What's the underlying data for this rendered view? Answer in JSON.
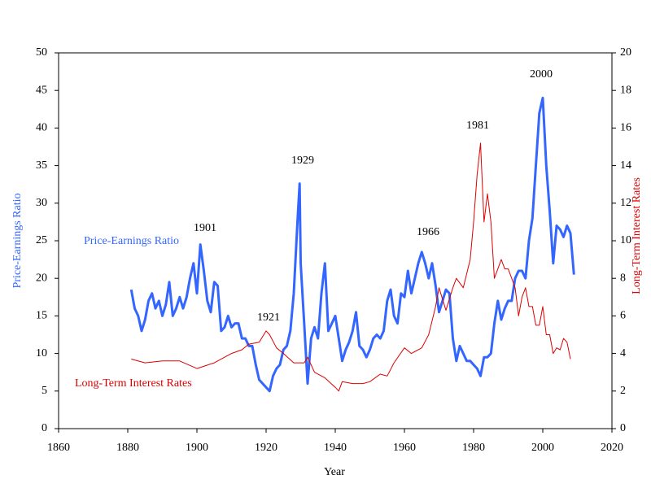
{
  "chart_data": {
    "type": "line",
    "x_label": "Year",
    "y_label": "Price-Earnings Ratio",
    "y2_label": "Long-Term Interest Rates",
    "xlim": [
      1860,
      2020
    ],
    "xticks": [
      1860,
      1880,
      1900,
      1920,
      1940,
      1960,
      1980,
      2000,
      2020
    ],
    "ylim": [
      0,
      50
    ],
    "yticks": [
      0,
      5,
      10,
      15,
      20,
      25,
      30,
      35,
      40,
      45,
      50
    ],
    "y2lim": [
      0,
      20
    ],
    "y2ticks": [
      0,
      2,
      4,
      6,
      8,
      10,
      12,
      14,
      16,
      18,
      20
    ],
    "annotations": [
      "1901",
      "1921",
      "1929",
      "1966",
      "1981",
      "2000"
    ],
    "series": [
      {
        "name": "Price-Earnings Ratio",
        "color": "#3366ff",
        "axis": "y",
        "x": [
          1881,
          1882,
          1883,
          1884,
          1885,
          1886,
          1887,
          1888,
          1889,
          1890,
          1891,
          1892,
          1893,
          1894,
          1895,
          1896,
          1897,
          1898,
          1899,
          1900,
          1901,
          1902,
          1903,
          1904,
          1905,
          1906,
          1907,
          1908,
          1909,
          1910,
          1911,
          1912,
          1913,
          1914,
          1915,
          1916,
          1917,
          1918,
          1919,
          1920,
          1921,
          1922,
          1923,
          1924,
          1925,
          1926,
          1927,
          1928,
          1929,
          1929.7,
          1930,
          1931,
          1932,
          1933,
          1934,
          1935,
          1936,
          1937,
          1938,
          1939,
          1940,
          1941,
          1942,
          1943,
          1944,
          1945,
          1946,
          1947,
          1948,
          1949,
          1950,
          1951,
          1952,
          1953,
          1954,
          1955,
          1956,
          1957,
          1958,
          1959,
          1960,
          1961,
          1962,
          1963,
          1964,
          1965,
          1966,
          1967,
          1968,
          1969,
          1970,
          1971,
          1972,
          1973,
          1974,
          1975,
          1976,
          1977,
          1978,
          1979,
          1980,
          1981,
          1982,
          1983,
          1984,
          1985,
          1986,
          1987,
          1988,
          1989,
          1990,
          1991,
          1992,
          1993,
          1994,
          1995,
          1996,
          1997,
          1998,
          1999,
          2000,
          2001,
          2002,
          2003,
          2004,
          2005,
          2006,
          2007,
          2008,
          2009
        ],
        "values": [
          18.5,
          16,
          15,
          13,
          14.5,
          17,
          18,
          16,
          17,
          15,
          16.5,
          19.5,
          15,
          16,
          17.5,
          16,
          17.5,
          20,
          22,
          18,
          24.5,
          21,
          17,
          15.5,
          19.5,
          19,
          13,
          13.5,
          15,
          13.5,
          14,
          14,
          12,
          12,
          11,
          11,
          8.5,
          6.5,
          6,
          5.5,
          5,
          7,
          8,
          8.5,
          10.5,
          11,
          13,
          18,
          27,
          32.6,
          22,
          14,
          6,
          12,
          13.5,
          12,
          18,
          22,
          13,
          14,
          15,
          12,
          9,
          10.5,
          11.5,
          13,
          15.5,
          11,
          10.5,
          9.5,
          10.5,
          12,
          12.5,
          12,
          13,
          17,
          18.5,
          15,
          14,
          18,
          17.5,
          21,
          18,
          20,
          22,
          23.5,
          22,
          20,
          22,
          19,
          15.5,
          17,
          18.5,
          18,
          12,
          9,
          11,
          10,
          9,
          9,
          8.5,
          8,
          7,
          9.5,
          9.5,
          10,
          14,
          17,
          14.5,
          16,
          17,
          17,
          20,
          21,
          21,
          20,
          25,
          28,
          35,
          42,
          44,
          35,
          29,
          22,
          27,
          26.5,
          25.5,
          27,
          26,
          20.5
        ]
      },
      {
        "name": "Long-Term Interest Rates",
        "color": "#dd0000",
        "axis": "y2",
        "x": [
          1881,
          1885,
          1890,
          1895,
          1900,
          1905,
          1910,
          1913,
          1915,
          1918,
          1920,
          1921,
          1923,
          1925,
          1928,
          1931,
          1932,
          1934,
          1937,
          1940,
          1941,
          1942,
          1945,
          1948,
          1950,
          1953,
          1955,
          1957,
          1960,
          1962,
          1965,
          1967,
          1969,
          1970,
          1972,
          1974,
          1975,
          1977,
          1979,
          1980,
          1981,
          1982,
          1983,
          1984,
          1985,
          1986,
          1987,
          1988,
          1989,
          1990,
          1991,
          1992,
          1993,
          1994,
          1995,
          1996,
          1997,
          1998,
          1999,
          2000,
          2001,
          2002,
          2003,
          2004,
          2005,
          2006,
          2007,
          2008
        ],
        "values": [
          3.7,
          3.5,
          3.6,
          3.6,
          3.2,
          3.5,
          4,
          4.2,
          4.5,
          4.6,
          5.2,
          5,
          4.3,
          4,
          3.5,
          3.5,
          3.8,
          3,
          2.7,
          2.2,
          2,
          2.5,
          2.4,
          2.4,
          2.5,
          2.9,
          2.8,
          3.5,
          4.3,
          4,
          4.3,
          5,
          6.5,
          7.5,
          6.3,
          7.5,
          8,
          7.5,
          9,
          11,
          13.5,
          15.2,
          11,
          12.5,
          11,
          8,
          8.5,
          9,
          8.5,
          8.5,
          8,
          7.5,
          6,
          7,
          7.5,
          6.5,
          6.5,
          5.5,
          5.5,
          6.5,
          5,
          5,
          4,
          4.3,
          4.2,
          4.8,
          4.6,
          3.7
        ]
      }
    ]
  }
}
